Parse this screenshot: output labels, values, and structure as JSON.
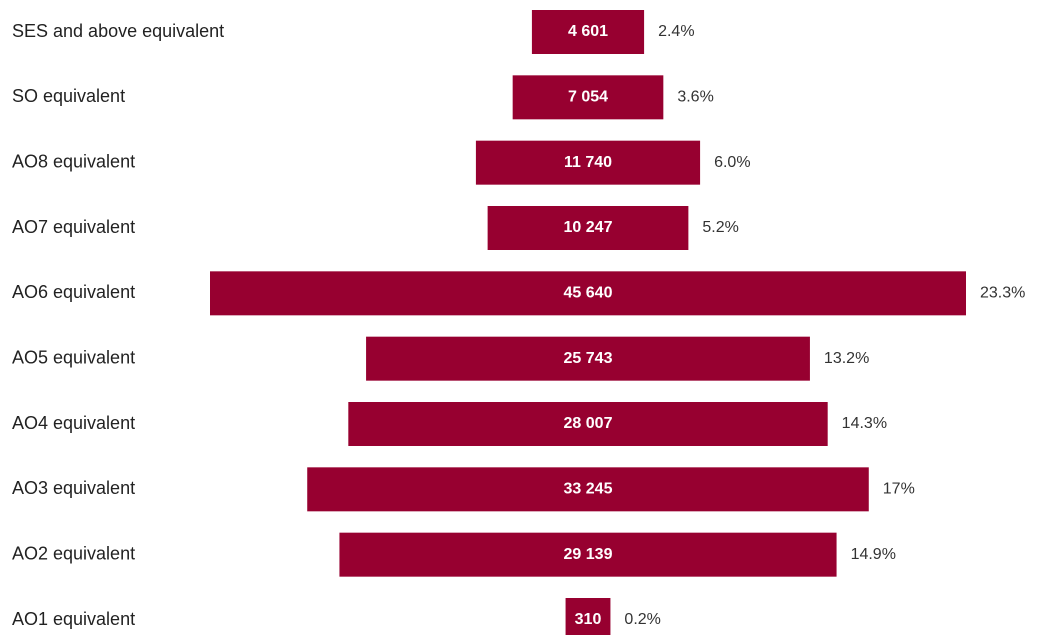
{
  "chart_data": {
    "type": "centered-bar",
    "categories": [
      "SES and above equivalent",
      "SO equivalent",
      "AO8 equivalent",
      "AO7 equivalent",
      "AO6 equivalent",
      "AO5 equivalent",
      "AO4 equivalent",
      "AO3 equivalent",
      "AO2 equivalent",
      "AO1 equivalent"
    ],
    "values": [
      4601,
      7054,
      11740,
      10247,
      45640,
      25743,
      28007,
      33245,
      29139,
      310
    ],
    "value_labels": [
      "4 601",
      "7 054",
      "11 740",
      "10 247",
      "45 640",
      "25 743",
      "28 007",
      "33 245",
      "29 139",
      "310"
    ],
    "shares": [
      2.4,
      3.6,
      6.0,
      5.2,
      23.3,
      13.2,
      14.3,
      17,
      14.9,
      0.2
    ],
    "share_labels": [
      "2.4%",
      "3.6%",
      "6.0%",
      "5.2%",
      "23.3%",
      "13.2%",
      "14.3%",
      "17%",
      "14.9%",
      "0.2%"
    ],
    "color": "#970030"
  }
}
